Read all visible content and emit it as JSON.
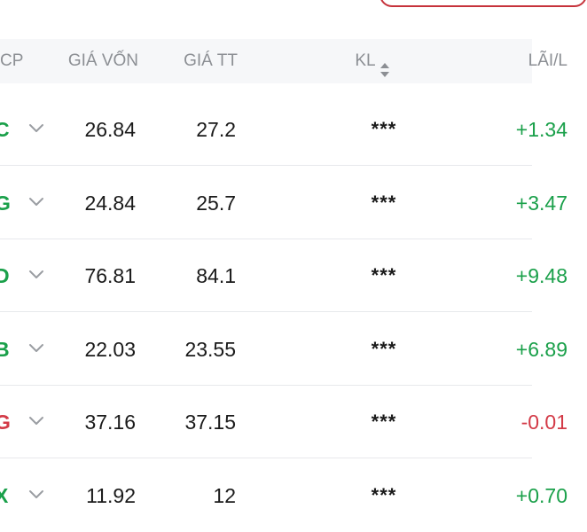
{
  "colors": {
    "up": "#1aa04a",
    "down": "#d33a47",
    "header_text": "#8c8f94",
    "header_bg": "#f6f7f9",
    "accent_border": "#c6323b"
  },
  "header": {
    "symbol": "CP",
    "cost_price": "GIÁ VỐN",
    "market_price": "GIÁ TT",
    "volume": "KL",
    "volume_sort_icon": "sort-up-down-icon",
    "profit_loss": "LÃI/L"
  },
  "rows": [
    {
      "symbol": "C",
      "trend": "up",
      "cost": "26.84",
      "market": "27.2",
      "volume": "***",
      "profit": "+1.34",
      "expand_icon": "chevron-down-icon"
    },
    {
      "symbol": "G",
      "trend": "up",
      "cost": "24.84",
      "market": "25.7",
      "volume": "***",
      "profit": "+3.47",
      "expand_icon": "chevron-down-icon"
    },
    {
      "symbol": "D",
      "trend": "up",
      "cost": "76.81",
      "market": "84.1",
      "volume": "***",
      "profit": "+9.48",
      "expand_icon": "chevron-down-icon"
    },
    {
      "symbol": "B",
      "trend": "up",
      "cost": "22.03",
      "market": "23.55",
      "volume": "***",
      "profit": "+6.89",
      "expand_icon": "chevron-down-icon"
    },
    {
      "symbol": "G",
      "trend": "down",
      "cost": "37.16",
      "market": "37.15",
      "volume": "***",
      "profit": "-0.01",
      "expand_icon": "chevron-down-icon"
    },
    {
      "symbol": "X",
      "trend": "up",
      "cost": "11.92",
      "market": "12",
      "volume": "***",
      "profit": "+0.70",
      "expand_icon": "chevron-down-icon"
    }
  ]
}
